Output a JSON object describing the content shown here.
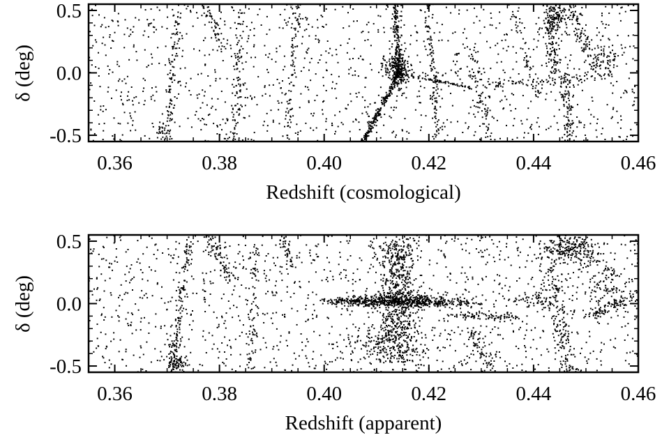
{
  "chart_data": [
    {
      "type": "scatter",
      "title": "",
      "xlabel": "Redshift (cosmological)",
      "ylabel": "δ (deg)",
      "xlim": [
        0.355,
        0.46
      ],
      "ylim": [
        -0.55,
        0.55
      ],
      "xticks": [
        0.36,
        0.38,
        0.4,
        0.42,
        0.44,
        0.46
      ],
      "xtick_labels": [
        "0.36",
        "0.38",
        "0.40",
        "0.42",
        "0.44",
        "0.46"
      ],
      "yticks": [
        -0.5,
        0.0,
        0.5
      ],
      "ytick_labels": [
        "-0.5",
        "0.0",
        "0.5"
      ],
      "grid": false,
      "marker_color": "#000000",
      "structures": [
        {
          "kind": "filament",
          "from": [
            0.4075,
            -0.55
          ],
          "to": [
            0.4145,
            0.02
          ],
          "width": 0.02,
          "n": 230
        },
        {
          "kind": "filament",
          "from": [
            0.4135,
            0.55
          ],
          "to": [
            0.4145,
            -0.05
          ],
          "width": 0.025,
          "n": 140
        },
        {
          "kind": "cluster",
          "center": [
            0.414,
            0.03
          ],
          "spread": [
            0.0012,
            0.07
          ],
          "n": 240
        },
        {
          "kind": "filament",
          "from": [
            0.416,
            -0.02
          ],
          "to": [
            0.428,
            -0.12
          ],
          "width": 0.02,
          "n": 70
        },
        {
          "kind": "filament",
          "from": [
            0.4195,
            0.55
          ],
          "to": [
            0.422,
            -0.55
          ],
          "width": 0.03,
          "n": 100
        },
        {
          "kind": "filament",
          "from": [
            0.372,
            0.5
          ],
          "to": [
            0.37,
            -0.55
          ],
          "width": 0.03,
          "n": 90
        },
        {
          "kind": "filament",
          "from": [
            0.384,
            0.5
          ],
          "to": [
            0.383,
            -0.55
          ],
          "width": 0.03,
          "n": 70
        },
        {
          "kind": "filament",
          "from": [
            0.395,
            0.55
          ],
          "to": [
            0.393,
            -0.55
          ],
          "width": 0.03,
          "n": 70
        },
        {
          "kind": "filament",
          "from": [
            0.377,
            0.55
          ],
          "to": [
            0.381,
            0.2
          ],
          "width": 0.04,
          "n": 50
        },
        {
          "kind": "filament",
          "from": [
            0.428,
            0.2
          ],
          "to": [
            0.432,
            -0.55
          ],
          "width": 0.04,
          "n": 70
        },
        {
          "kind": "filament",
          "from": [
            0.443,
            0.55
          ],
          "to": [
            0.444,
            0.0
          ],
          "width": 0.04,
          "n": 110
        },
        {
          "kind": "filament",
          "from": [
            0.447,
            0.55
          ],
          "to": [
            0.452,
            0.0
          ],
          "width": 0.05,
          "n": 110
        },
        {
          "kind": "filament",
          "from": [
            0.446,
            0.0
          ],
          "to": [
            0.447,
            -0.55
          ],
          "width": 0.04,
          "n": 100
        },
        {
          "kind": "filament",
          "from": [
            0.432,
            -0.1
          ],
          "to": [
            0.455,
            -0.02
          ],
          "width": 0.05,
          "n": 80
        },
        {
          "kind": "filament",
          "from": [
            0.436,
            0.5
          ],
          "to": [
            0.441,
            -0.2
          ],
          "width": 0.03,
          "n": 50
        },
        {
          "kind": "cluster",
          "center": [
            0.444,
            0.42
          ],
          "spread": [
            0.0012,
            0.06
          ],
          "n": 90
        },
        {
          "kind": "cluster",
          "center": [
            0.454,
            0.1
          ],
          "spread": [
            0.0012,
            0.06
          ],
          "n": 60
        },
        {
          "kind": "cluster",
          "center": [
            0.369,
            -0.47
          ],
          "spread": [
            0.0006,
            0.03
          ],
          "n": 30
        },
        {
          "kind": "background",
          "n": 1200
        }
      ]
    },
    {
      "type": "scatter",
      "title": "",
      "xlabel": "Redshift (apparent)",
      "ylabel": "δ (deg)",
      "xlim": [
        0.355,
        0.46
      ],
      "ylim": [
        -0.55,
        0.55
      ],
      "xticks": [
        0.36,
        0.38,
        0.4,
        0.42,
        0.44,
        0.46
      ],
      "xtick_labels": [
        "0.36",
        "0.38",
        "0.40",
        "0.42",
        "0.44",
        "0.46"
      ],
      "yticks": [
        -0.5,
        0.0,
        0.5
      ],
      "ytick_labels": [
        "-0.5",
        "0.0",
        "0.5"
      ],
      "grid": false,
      "marker_color": "#000000",
      "structures": [
        {
          "kind": "cluster",
          "center": [
            0.414,
            0.02
          ],
          "spread": [
            0.006,
            0.025
          ],
          "n": 520
        },
        {
          "kind": "cluster",
          "center": [
            0.414,
            0.0
          ],
          "spread": [
            0.0018,
            0.25
          ],
          "n": 520
        },
        {
          "kind": "cluster",
          "center": [
            0.412,
            -0.35
          ],
          "spread": [
            0.004,
            0.09
          ],
          "n": 180
        },
        {
          "kind": "cluster",
          "center": [
            0.414,
            0.42
          ],
          "spread": [
            0.002,
            0.07
          ],
          "n": 110
        },
        {
          "kind": "filament",
          "from": [
            0.398,
            0.02
          ],
          "to": [
            0.43,
            0.0
          ],
          "width": 0.04,
          "n": 160
        },
        {
          "kind": "filament",
          "from": [
            0.374,
            0.5
          ],
          "to": [
            0.371,
            -0.55
          ],
          "width": 0.03,
          "n": 150
        },
        {
          "kind": "cluster",
          "center": [
            0.372,
            -0.47
          ],
          "spread": [
            0.001,
            0.03
          ],
          "n": 60
        },
        {
          "kind": "filament",
          "from": [
            0.378,
            0.55
          ],
          "to": [
            0.382,
            0.2
          ],
          "width": 0.05,
          "n": 70
        },
        {
          "kind": "filament",
          "from": [
            0.387,
            0.5
          ],
          "to": [
            0.386,
            -0.55
          ],
          "width": 0.03,
          "n": 70
        },
        {
          "kind": "filament",
          "from": [
            0.392,
            0.55
          ],
          "to": [
            0.394,
            0.3
          ],
          "width": 0.03,
          "n": 40
        },
        {
          "kind": "filament",
          "from": [
            0.425,
            -0.1
          ],
          "to": [
            0.437,
            -0.1
          ],
          "width": 0.05,
          "n": 80
        },
        {
          "kind": "filament",
          "from": [
            0.428,
            -0.2
          ],
          "to": [
            0.432,
            -0.55
          ],
          "width": 0.04,
          "n": 70
        },
        {
          "kind": "cluster",
          "center": [
            0.447,
            0.43
          ],
          "spread": [
            0.003,
            0.06
          ],
          "n": 250
        },
        {
          "kind": "filament",
          "from": [
            0.443,
            0.3
          ],
          "to": [
            0.447,
            -0.55
          ],
          "width": 0.06,
          "n": 160
        },
        {
          "kind": "cluster",
          "center": [
            0.454,
            0.15
          ],
          "spread": [
            0.002,
            0.12
          ],
          "n": 120
        },
        {
          "kind": "cluster",
          "center": [
            0.441,
            0.02
          ],
          "spread": [
            0.0025,
            0.03
          ],
          "n": 60
        },
        {
          "kind": "filament",
          "from": [
            0.451,
            -0.1
          ],
          "to": [
            0.459,
            0.05
          ],
          "width": 0.05,
          "n": 60
        },
        {
          "kind": "background",
          "n": 1300
        }
      ]
    }
  ]
}
